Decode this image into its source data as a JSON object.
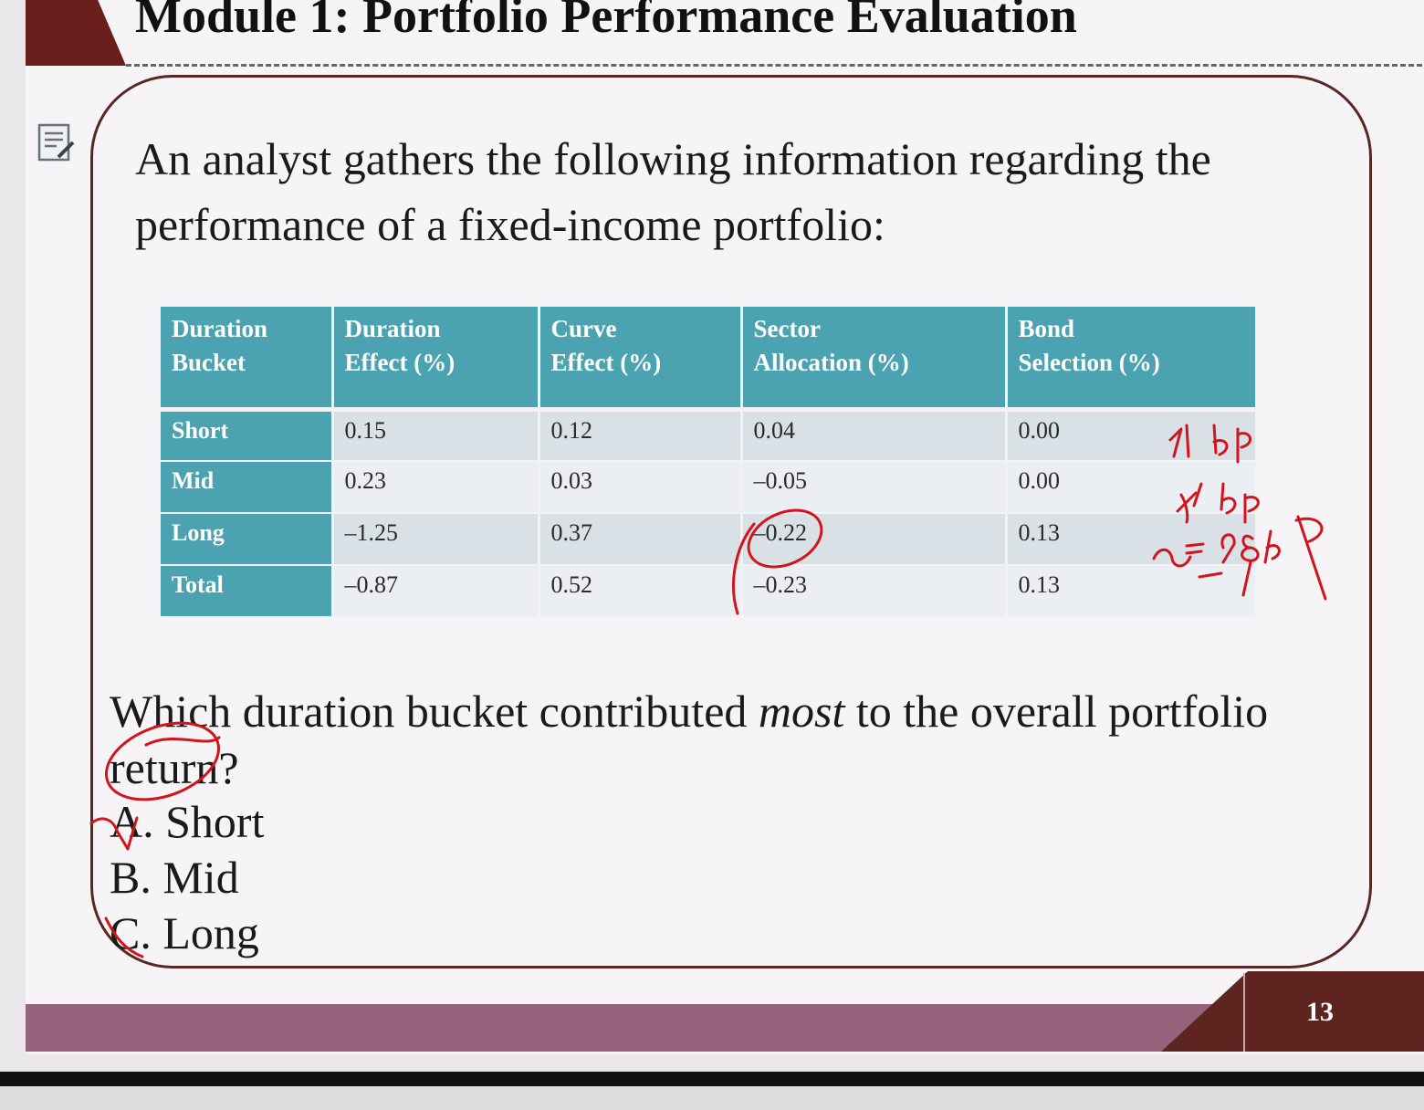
{
  "header": {
    "title": "Module 1: Portfolio Performance Evaluation"
  },
  "intro": "An analyst gathers the following information regarding the performance of a fixed-income portfolio:",
  "table": {
    "headers": [
      [
        "Duration",
        "Bucket"
      ],
      [
        "Duration",
        "Effect (%)"
      ],
      [
        "Curve",
        "Effect (%)"
      ],
      [
        "Sector",
        "Allocation (%)"
      ],
      [
        "Bond",
        "Selection (%)"
      ]
    ],
    "rows": [
      [
        "Short",
        "0.15",
        "0.12",
        "0.04",
        "0.00"
      ],
      [
        "Mid",
        "0.23",
        "0.03",
        "–0.05",
        "0.00"
      ],
      [
        "Long",
        "–1.25",
        "0.37",
        "–0.22",
        "0.13"
      ],
      [
        "Total",
        "–0.87",
        "0.52",
        "–0.23",
        "0.13"
      ]
    ]
  },
  "question": {
    "before": "Which duration bucket contributed ",
    "emphasis": "most",
    "after": " to the overall portfolio return?",
    "options": [
      "A. Short",
      "B. Mid",
      "C. Long"
    ]
  },
  "footer": {
    "page_number": "13"
  },
  "icons": {
    "note": "edit-note-icon"
  },
  "colors": {
    "header_teal": "#4ba3b1",
    "title_maroon": "#6a1f1c",
    "footer_mauve": "#95637b",
    "annotation_red": "#d0151c"
  }
}
